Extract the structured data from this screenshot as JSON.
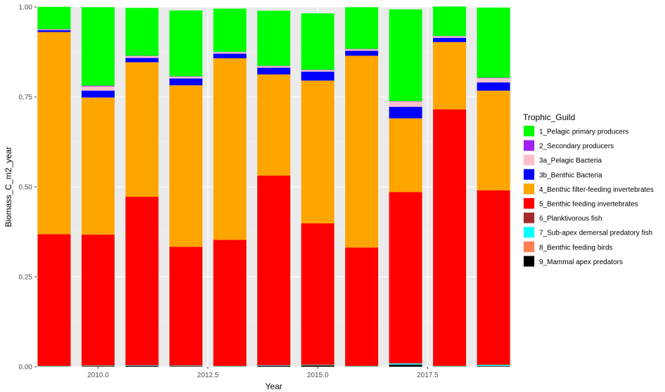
{
  "chart_data": {
    "type": "bar",
    "stacked": true,
    "normalized": true,
    "xlabel": "Year",
    "ylabel": "Biomass_C_m2_year",
    "legend_title": "Trophic_Guild",
    "legend_position": "right",
    "grid": true,
    "ylim": [
      0,
      1
    ],
    "xlim": [
      2008.6,
      2019.4
    ],
    "x_ticks": [
      {
        "value": 2010.0,
        "label": "2010.0"
      },
      {
        "value": 2012.5,
        "label": "2012.5"
      },
      {
        "value": 2015.0,
        "label": "2015.0"
      },
      {
        "value": 2017.5,
        "label": "2017.5"
      }
    ],
    "y_ticks": [
      {
        "value": 0.0,
        "label": "0.00"
      },
      {
        "value": 0.25,
        "label": "0.25"
      },
      {
        "value": 0.5,
        "label": "0.50"
      },
      {
        "value": 0.75,
        "label": "0.75"
      },
      {
        "value": 1.0,
        "label": "1.00"
      }
    ],
    "x": [
      2009,
      2010,
      2011,
      2012,
      2013,
      2014,
      2015,
      2016,
      2017,
      2018,
      2019
    ],
    "series": [
      {
        "name": "1_Pelagic primary producers",
        "color": "#00FF00",
        "values": [
          0.062,
          0.218,
          0.133,
          0.183,
          0.12,
          0.153,
          0.157,
          0.116,
          0.255,
          0.082,
          0.195
        ]
      },
      {
        "name": "2_Secondary producers",
        "color": "#A020F0",
        "values": [
          0.001,
          0.002,
          0.001,
          0.001,
          0.001,
          0.001,
          0.001,
          0.001,
          0.001,
          0.001,
          0.001
        ]
      },
      {
        "name": "3a_Pelagic Bacteria",
        "color": "#FFC0CB",
        "values": [
          0.002,
          0.012,
          0.005,
          0.005,
          0.004,
          0.004,
          0.004,
          0.004,
          0.015,
          0.004,
          0.012
        ]
      },
      {
        "name": "3b_Benthic Bacteria",
        "color": "#0000FF",
        "values": [
          0.005,
          0.019,
          0.012,
          0.019,
          0.013,
          0.019,
          0.025,
          0.014,
          0.032,
          0.012,
          0.023
        ]
      },
      {
        "name": "4_Benthic filter-feeding invertebrates",
        "color": "#FFA500",
        "values": [
          0.562,
          0.381,
          0.374,
          0.449,
          0.505,
          0.281,
          0.397,
          0.533,
          0.205,
          0.187,
          0.277
        ]
      },
      {
        "name": "5_Benthic feeding invertebrates",
        "color": "#FF0000",
        "values": [
          0.366,
          0.364,
          0.468,
          0.33,
          0.35,
          0.527,
          0.393,
          0.329,
          0.476,
          0.713,
          0.485
        ]
      },
      {
        "name": "6_Planktivorous fish",
        "color": "#A52A2A",
        "values": [
          0.0005,
          0.0005,
          0.0005,
          0.0005,
          0.0005,
          0.0005,
          0.0005,
          0.0005,
          0.0005,
          0.0005,
          0.0005
        ]
      },
      {
        "name": "7_Sub-apex demersal predatory fish",
        "color": "#00FFFF",
        "values": [
          0.001,
          0.001,
          0.001,
          0.001,
          0.001,
          0.001,
          0.001,
          0.001,
          0.003,
          0.001,
          0.003
        ]
      },
      {
        "name": "8_Benthic feeding birds",
        "color": "#FF7F50",
        "values": [
          0.0005,
          0.0005,
          0.0005,
          0.0005,
          0.0005,
          0.0005,
          0.0005,
          0.0005,
          0.0005,
          0.0005,
          0.0005
        ]
      },
      {
        "name": "9_Mammal apex predators",
        "color": "#000000",
        "values": [
          0.0005,
          0.0015,
          0.0025,
          0.0015,
          0.0005,
          0.0025,
          0.0035,
          0.0005,
          0.0055,
          0.0005,
          0.0015
        ]
      }
    ]
  }
}
